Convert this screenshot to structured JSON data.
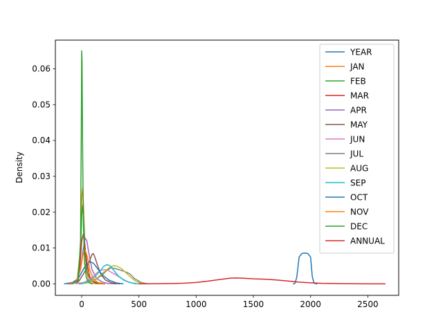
{
  "chart_data": {
    "type": "line",
    "title": "",
    "xlabel": "",
    "ylabel": "Density",
    "xlim": [
      -230,
      2770
    ],
    "ylim": [
      -0.0032,
      0.068
    ],
    "xticks": [
      0,
      500,
      1000,
      1500,
      2000,
      2500
    ],
    "xtick_labels": [
      "0",
      "500",
      "1000",
      "1500",
      "2000",
      "2500"
    ],
    "yticks": [
      0.0,
      0.01,
      0.02,
      0.03,
      0.04,
      0.05,
      0.06
    ],
    "ytick_labels": [
      "0.00",
      "0.01",
      "0.02",
      "0.03",
      "0.04",
      "0.05",
      "0.06"
    ],
    "grid": false,
    "legend_position": "top-right",
    "series": [
      {
        "name": "YEAR",
        "color": "#1f77b4",
        "x": [
          1850,
          1865,
          1880,
          1900,
          1925,
          1950,
          1975,
          2000,
          2015,
          2030,
          2055
        ],
        "y": [
          0,
          0.0002,
          0.002,
          0.0075,
          0.0085,
          0.0086,
          0.0085,
          0.0075,
          0.002,
          0.0002,
          0
        ]
      },
      {
        "name": "JAN",
        "color": "#ff7f0e",
        "x": [
          -100,
          -40,
          -10,
          0,
          10,
          18,
          25,
          40,
          60,
          90,
          140
        ],
        "y": [
          0,
          0.0005,
          0.01,
          0.024,
          0.027,
          0.02,
          0.012,
          0.004,
          0.001,
          0.0002,
          0
        ]
      },
      {
        "name": "FEB",
        "color": "#2ca02c",
        "x": [
          -100,
          -40,
          -10,
          0,
          10,
          20,
          30,
          50,
          80,
          120,
          180
        ],
        "y": [
          0,
          0.0005,
          0.009,
          0.019,
          0.022,
          0.016,
          0.009,
          0.003,
          0.001,
          0.0002,
          0
        ]
      },
      {
        "name": "MAR",
        "color": "#d62728",
        "x": [
          -100,
          -40,
          -15,
          0,
          15,
          30,
          45,
          70,
          100,
          150,
          200
        ],
        "y": [
          0,
          0.0005,
          0.005,
          0.012,
          0.014,
          0.01,
          0.006,
          0.002,
          0.0007,
          0.0002,
          0
        ]
      },
      {
        "name": "APR",
        "color": "#9467bd",
        "x": [
          -120,
          -50,
          -10,
          10,
          30,
          45,
          60,
          90,
          130,
          180,
          230,
          300
        ],
        "y": [
          0,
          0.0005,
          0.004,
          0.009,
          0.0128,
          0.012,
          0.009,
          0.004,
          0.0015,
          0.0005,
          0.0001,
          0
        ]
      },
      {
        "name": "MAY",
        "color": "#8c564b",
        "x": [
          -100,
          -30,
          20,
          50,
          70,
          90,
          100,
          115,
          140,
          170,
          210,
          260,
          330
        ],
        "y": [
          0,
          0.0005,
          0.003,
          0.005,
          0.0065,
          0.0082,
          0.0085,
          0.0075,
          0.005,
          0.0025,
          0.001,
          0.0003,
          0
        ]
      },
      {
        "name": "JUN",
        "color": "#e377c2",
        "x": [
          -50,
          20,
          80,
          130,
          170,
          200,
          230,
          260,
          300,
          350,
          400,
          470
        ],
        "y": [
          0,
          0.0004,
          0.0015,
          0.003,
          0.0038,
          0.004,
          0.0038,
          0.0032,
          0.0025,
          0.0015,
          0.0006,
          0
        ]
      },
      {
        "name": "JUL",
        "color": "#7f7f7f",
        "x": [
          -20,
          50,
          120,
          180,
          220,
          260,
          300,
          340,
          380,
          420,
          460,
          520,
          580
        ],
        "y": [
          0,
          0.0003,
          0.0012,
          0.0025,
          0.0038,
          0.0045,
          0.0042,
          0.0038,
          0.0034,
          0.0028,
          0.0015,
          0.0004,
          0
        ]
      },
      {
        "name": "AUG",
        "color": "#bcbd22",
        "x": [
          0,
          60,
          130,
          190,
          240,
          280,
          310,
          350,
          390,
          430,
          470,
          520,
          580
        ],
        "y": [
          0,
          0.0004,
          0.0015,
          0.0032,
          0.0045,
          0.0051,
          0.0049,
          0.0042,
          0.003,
          0.0018,
          0.0008,
          0.0002,
          0
        ]
      },
      {
        "name": "SEP",
        "color": "#17becf",
        "x": [
          -20,
          50,
          100,
          150,
          190,
          220,
          250,
          280,
          320,
          370,
          430,
          500
        ],
        "y": [
          0,
          0.0005,
          0.0015,
          0.0032,
          0.0048,
          0.0054,
          0.005,
          0.0038,
          0.0022,
          0.001,
          0.0003,
          0
        ]
      },
      {
        "name": "OCT",
        "color": "#1f77b4",
        "x": [
          -150,
          -80,
          -30,
          10,
          40,
          70,
          90,
          110,
          140,
          180,
          240,
          300,
          360
        ],
        "y": [
          0,
          0.0004,
          0.0015,
          0.0038,
          0.0055,
          0.006,
          0.006,
          0.0055,
          0.0042,
          0.0025,
          0.001,
          0.0003,
          0
        ]
      },
      {
        "name": "NOV",
        "color": "#ff7f0e",
        "x": [
          -110,
          -50,
          -10,
          10,
          30,
          50,
          70,
          100,
          140,
          200
        ],
        "y": [
          0,
          0.0005,
          0.004,
          0.008,
          0.0095,
          0.0075,
          0.004,
          0.0015,
          0.0004,
          0
        ]
      },
      {
        "name": "DEC",
        "color": "#2ca02c",
        "x": [
          -80,
          -30,
          -10,
          -3,
          0,
          3,
          8,
          15,
          25,
          40,
          60,
          90
        ],
        "y": [
          0,
          0.001,
          0.012,
          0.045,
          0.065,
          0.062,
          0.038,
          0.016,
          0.006,
          0.0018,
          0.0004,
          0
        ]
      },
      {
        "name": "ANNUAL",
        "color": "#d62728",
        "x": [
          500,
          600,
          700,
          800,
          900,
          1000,
          1100,
          1200,
          1300,
          1350,
          1400,
          1500,
          1600,
          1700,
          1800,
          1900,
          2000,
          2100,
          2300,
          2500,
          2650
        ],
        "y": [
          0,
          2e-05,
          5e-05,
          0.0001,
          0.0002,
          0.0004,
          0.00075,
          0.0012,
          0.0016,
          0.00165,
          0.0016,
          0.0014,
          0.0013,
          0.0011,
          0.0008,
          0.0005,
          0.0003,
          0.00015,
          5e-05,
          1e-05,
          0
        ]
      }
    ]
  }
}
